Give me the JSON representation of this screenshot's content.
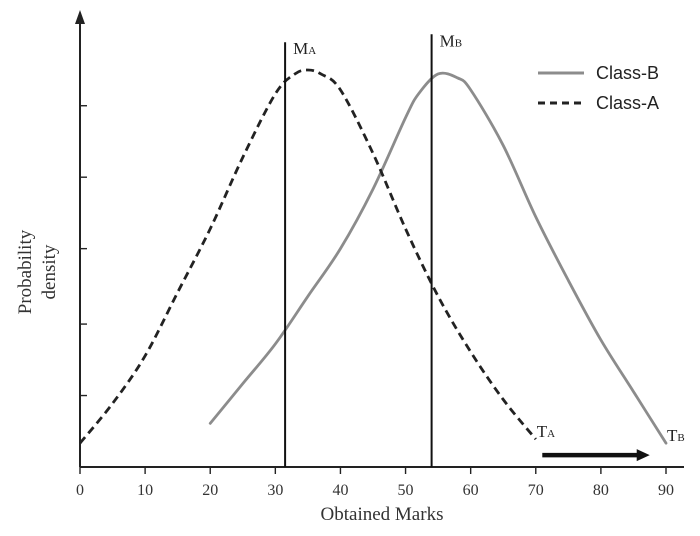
{
  "chart_data": {
    "type": "line",
    "title": "",
    "xlabel": "Obtained Marks",
    "ylabel": "Probability density",
    "ylabel_lines": [
      "Probability",
      "density"
    ],
    "xlim": [
      0,
      90
    ],
    "ylim": [
      0,
      1
    ],
    "xticks": [
      0,
      10,
      20,
      30,
      40,
      50,
      60,
      70,
      80,
      90
    ],
    "xtick_labels": [
      "0",
      "10",
      "20",
      "30",
      "40",
      "50",
      "60",
      "70",
      "80",
      "90"
    ],
    "yticks": [
      0.18,
      0.36,
      0.55,
      0.73,
      0.91
    ],
    "ytick_labels_shown": false,
    "grid": false,
    "legend_position": "top-right",
    "series": [
      {
        "name": "Class-B",
        "style": "solid",
        "color": "#8c8c8c",
        "x": [
          20,
          25,
          30,
          35,
          40,
          45,
          50,
          52,
          55,
          58,
          60,
          65,
          70,
          75,
          80,
          85,
          90
        ],
        "y": [
          0.11,
          0.21,
          0.31,
          0.43,
          0.55,
          0.7,
          0.88,
          0.94,
          0.99,
          0.98,
          0.95,
          0.81,
          0.63,
          0.47,
          0.32,
          0.19,
          0.06
        ]
      },
      {
        "name": "Class-A",
        "style": "dashed",
        "color": "#222222",
        "x": [
          0,
          5,
          10,
          15,
          20,
          25,
          30,
          33,
          35,
          37,
          40,
          45,
          50,
          55,
          60,
          65,
          70
        ],
        "y": [
          0.06,
          0.16,
          0.28,
          0.44,
          0.6,
          0.78,
          0.94,
          0.99,
          1.0,
          0.99,
          0.95,
          0.79,
          0.6,
          0.43,
          0.29,
          0.17,
          0.07
        ]
      }
    ],
    "annotations": {
      "vlines": [
        {
          "label_main": "M",
          "label_sub": "A",
          "x": 31.5,
          "y_from": 0,
          "y_top": 1.07
        },
        {
          "label_main": "M",
          "label_sub": "B",
          "x": 54,
          "y_from": 0,
          "y_top": 1.09
        }
      ],
      "thresholds": [
        {
          "label_main": "T",
          "label_sub": "A",
          "x": 70,
          "y": 0.07
        },
        {
          "label_main": "T",
          "label_sub": "B",
          "x": 90,
          "y": 0.06
        }
      ],
      "arrow": {
        "from_x": 71,
        "to_x": 87.5,
        "y": 0.03
      }
    }
  }
}
